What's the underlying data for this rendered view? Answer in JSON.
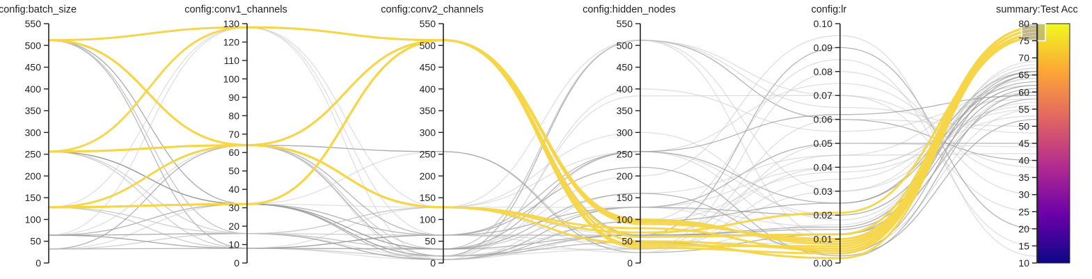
{
  "chart_data": {
    "type": "parallel_coordinates",
    "title": "",
    "axes": [
      {
        "key": "batch_size",
        "label": "config:batch_size",
        "range": [
          0,
          550
        ],
        "ticks": [
          "0",
          "50",
          "100",
          "150",
          "200",
          "250",
          "300",
          "350",
          "400",
          "450",
          "500",
          "550"
        ]
      },
      {
        "key": "conv1_channels",
        "label": "config:conv1_channels",
        "range": [
          0,
          130
        ],
        "ticks": [
          "0",
          "10",
          "20",
          "30",
          "40",
          "50",
          "60",
          "70",
          "80",
          "90",
          "100",
          "110",
          "120",
          "130"
        ]
      },
      {
        "key": "conv2_channels",
        "label": "config:conv2_channels",
        "range": [
          0,
          550
        ],
        "ticks": [
          "0",
          "50",
          "100",
          "150",
          "200",
          "250",
          "300",
          "350",
          "400",
          "450",
          "500",
          "550"
        ]
      },
      {
        "key": "hidden_nodes",
        "label": "config:hidden_nodes",
        "range": [
          0,
          550
        ],
        "ticks": [
          "0",
          "50",
          "100",
          "150",
          "200",
          "250",
          "300",
          "350",
          "400",
          "450",
          "500",
          "550"
        ]
      },
      {
        "key": "lr",
        "label": "config:lr",
        "range": [
          0,
          0.1
        ],
        "ticks": [
          "0.00",
          "0.01",
          "0.02",
          "0.03",
          "0.04",
          "0.05",
          "0.06",
          "0.07",
          "0.08",
          "0.09",
          "0.10"
        ]
      },
      {
        "key": "test_acc",
        "label": "summary:Test Acc",
        "range": [
          10,
          80
        ],
        "ticks": [
          "10",
          "15",
          "20",
          "25",
          "30",
          "35",
          "40",
          "45",
          "50",
          "55",
          "60",
          "65",
          "70",
          "75",
          "80"
        ]
      }
    ],
    "color_scale": {
      "metric": "summary:Test Acc",
      "range": [
        10,
        80
      ],
      "stops": [
        "#0d0887",
        "#6a00a8",
        "#b12a90",
        "#e16462",
        "#fca636",
        "#f0f921"
      ]
    },
    "filter_brush": {
      "axis": "test_acc",
      "range": [
        75,
        80
      ]
    },
    "highlight_color": "#f5d547",
    "highlighted_runs": [
      [
        128,
        32,
        512,
        100,
        0.008,
        79
      ],
      [
        128,
        32,
        512,
        90,
        0.01,
        78
      ],
      [
        128,
        64,
        128,
        80,
        0.005,
        77
      ],
      [
        256,
        128,
        512,
        40,
        0.007,
        78
      ],
      [
        256,
        64,
        128,
        70,
        0.021,
        76
      ],
      [
        512,
        128,
        512,
        50,
        0.006,
        77
      ],
      [
        512,
        64,
        512,
        60,
        0.012,
        79
      ],
      [
        128,
        32,
        512,
        35,
        0.004,
        78
      ],
      [
        256,
        64,
        512,
        95,
        0.009,
        76
      ],
      [
        512,
        64,
        128,
        45,
        0.002,
        77
      ]
    ],
    "background_runs": [
      [
        512,
        128,
        512,
        64,
        0.015,
        65
      ],
      [
        512,
        16,
        32,
        512,
        0.01,
        60
      ],
      [
        512,
        32,
        128,
        256,
        0.02,
        62
      ],
      [
        512,
        8,
        64,
        64,
        0.012,
        58
      ],
      [
        512,
        64,
        256,
        32,
        0.03,
        64
      ],
      [
        256,
        16,
        32,
        128,
        0.005,
        55
      ],
      [
        256,
        32,
        16,
        512,
        0.06,
        40
      ],
      [
        256,
        8,
        8,
        64,
        0.045,
        62
      ],
      [
        256,
        128,
        128,
        32,
        0.08,
        30
      ],
      [
        256,
        64,
        64,
        256,
        0.025,
        66
      ],
      [
        128,
        16,
        128,
        128,
        0.015,
        68
      ],
      [
        128,
        8,
        32,
        512,
        0.07,
        25
      ],
      [
        128,
        64,
        16,
        64,
        0.09,
        20
      ],
      [
        128,
        32,
        256,
        32,
        0.035,
        60
      ],
      [
        64,
        16,
        64,
        256,
        0.01,
        67
      ],
      [
        64,
        32,
        8,
        128,
        0.05,
        45
      ],
      [
        64,
        8,
        128,
        64,
        0.04,
        55
      ],
      [
        32,
        16,
        32,
        32,
        0.06,
        50
      ],
      [
        32,
        8,
        64,
        128,
        0.02,
        62
      ],
      [
        32,
        32,
        16,
        256,
        0.075,
        35
      ],
      [
        512,
        16,
        8,
        400,
        0.055,
        58
      ],
      [
        256,
        32,
        64,
        220,
        0.003,
        52
      ],
      [
        128,
        8,
        16,
        96,
        0.085,
        15
      ],
      [
        64,
        64,
        32,
        512,
        0.065,
        48
      ],
      [
        512,
        32,
        16,
        48,
        0.002,
        60
      ],
      [
        256,
        16,
        128,
        300,
        0.018,
        64
      ],
      [
        128,
        128,
        8,
        160,
        0.045,
        42
      ],
      [
        32,
        64,
        256,
        24,
        0.012,
        66
      ],
      [
        512,
        8,
        32,
        200,
        0.095,
        12
      ],
      [
        256,
        8,
        16,
        384,
        0.07,
        38
      ],
      [
        64,
        16,
        8,
        96,
        0.025,
        63
      ],
      [
        128,
        16,
        64,
        48,
        0.008,
        69
      ],
      [
        512,
        64,
        32,
        128,
        0.04,
        56
      ],
      [
        256,
        32,
        32,
        64,
        0.014,
        61
      ],
      [
        32,
        16,
        128,
        512,
        0.03,
        57
      ],
      [
        64,
        128,
        64,
        24,
        0.05,
        44
      ],
      [
        128,
        32,
        32,
        256,
        0.062,
        59
      ],
      [
        512,
        16,
        16,
        32,
        0.016,
        67
      ],
      [
        256,
        64,
        8,
        96,
        0.038,
        53
      ],
      [
        64,
        8,
        32,
        160,
        0.004,
        65
      ]
    ]
  }
}
